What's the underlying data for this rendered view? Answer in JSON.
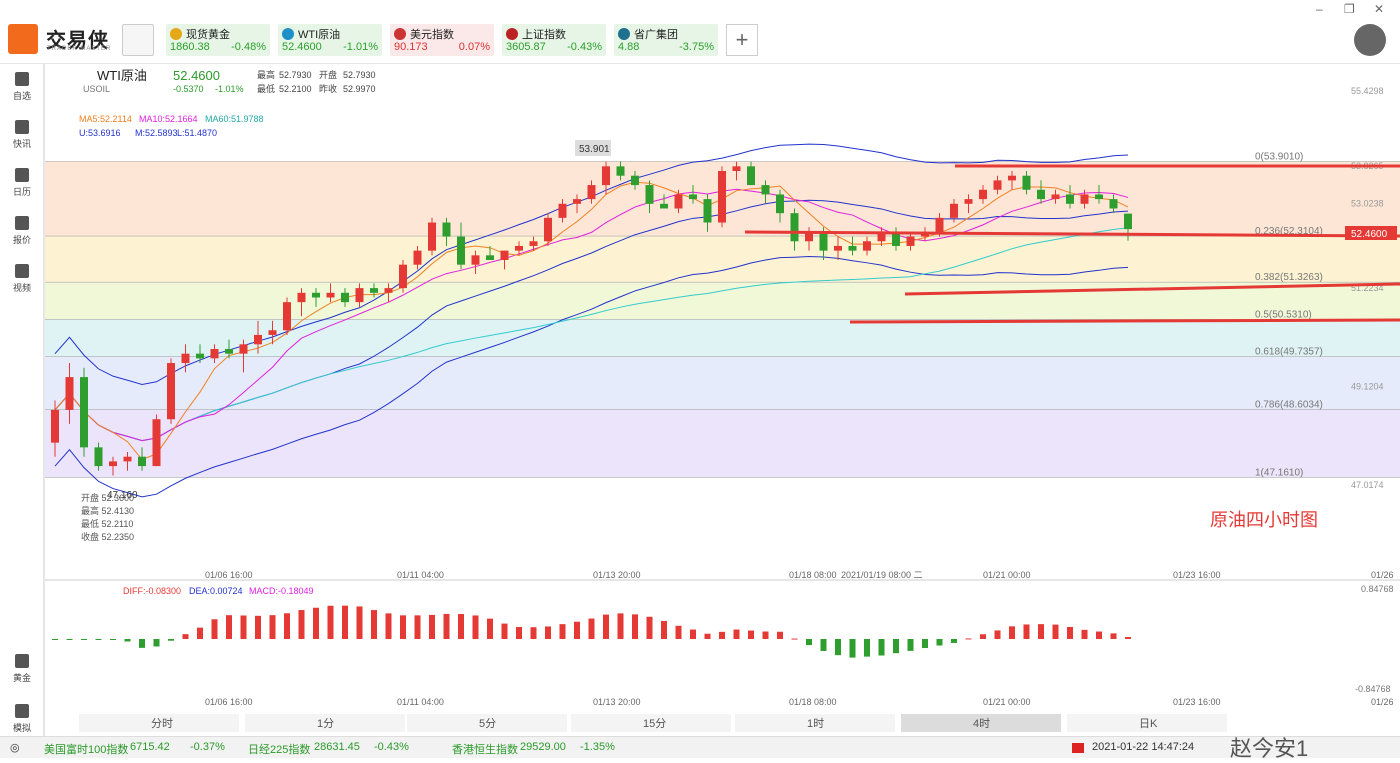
{
  "app": {
    "logo_text": "交易侠",
    "logo_sub": "TRADER MASTER",
    "add_label": "+"
  },
  "tickers": [
    {
      "name": "现货黄金",
      "price": "1860.38",
      "change": "-0.48%",
      "bg": "#e7f5e7",
      "dot": "#e6a817",
      "pc": "#2aa02a"
    },
    {
      "name": "WTI原油",
      "price": "52.4600",
      "change": "-1.01%",
      "bg": "#e7f5e7",
      "dot": "#1f8fc7",
      "pc": "#2aa02a"
    },
    {
      "name": "美元指数",
      "price": "90.173",
      "change": "0.07%",
      "bg": "#fbe8e8",
      "dot": "#c33",
      "pc": "#d33"
    },
    {
      "name": "上证指数",
      "price": "3605.87",
      "change": "-0.43%",
      "bg": "#e7f5e7",
      "dot": "#b22",
      "pc": "#2aa02a"
    },
    {
      "name": "省广集团",
      "price": "4.88",
      "change": "-3.75%",
      "bg": "#e7f5e7",
      "dot": "#1f6f8f",
      "pc": "#2aa02a"
    }
  ],
  "sidebar": [
    "自选",
    "快讯",
    "日历",
    "报价",
    "视频",
    "黄金",
    "模拟"
  ],
  "symbol": {
    "name": "WTI原油",
    "code": "USOIL",
    "price": "52.4600",
    "change": "-0.5370",
    "pct": "-1.01%",
    "high_label": "最高",
    "high": "52.7930",
    "open_label": "开盘",
    "open": "52.7930",
    "low_label": "最低",
    "low": "52.2100",
    "prev_label": "昨收",
    "prev": "52.9970"
  },
  "ma": {
    "ma5": "MA5:52.2114",
    "ma10": "MA10:52.1664",
    "ma60": "MA60:51.9788",
    "u": "U:53.6916",
    "m": "M:52.5893",
    "l": "L:51.4870"
  },
  "fib": [
    {
      "label": "0(53.9010)",
      "price": 53.901
    },
    {
      "label": "0.236(52.3104)",
      "price": 52.3104
    },
    {
      "label": "0.382(51.3263)",
      "price": 51.3263
    },
    {
      "label": "0.5(50.5310)",
      "price": 50.531
    },
    {
      "label": "0.618(49.7357)",
      "price": 49.7357
    },
    {
      "label": "0.786(48.6034)",
      "price": 48.6034
    },
    {
      "label": "1(47.1610)",
      "price": 47.161
    }
  ],
  "yaxis": [
    "55.4298",
    "53.8265",
    "53.0238",
    "52.4600",
    "51.2234",
    "49.1204",
    "47.0174"
  ],
  "annot": {
    "peak": "53.901",
    "low": "47.160",
    "title": "原油四小时图"
  },
  "ohlc_box": [
    "开盘 52.3600",
    "最高 52.4130",
    "最低 52.2110",
    "收盘 52.2350"
  ],
  "xaxis": [
    "01/06 16:00",
    "01/11 04:00",
    "01/13 20:00",
    "01/18 08:00",
    "2021/01/19 08:00 二",
    "01/21 00:00",
    "01/23 16:00",
    "01/26"
  ],
  "macd": {
    "diff": "DIFF:-0.08300",
    "dea": "DEA:0.00724",
    "macd": "MACD:-0.18049",
    "top": "0.84768",
    "bottom": "-0.84768"
  },
  "timeframes": [
    "分时",
    "1分",
    "5分",
    "15分",
    "1时",
    "4时",
    "日K"
  ],
  "footer": [
    {
      "name": "美国富时100指数",
      "price": "6715.42",
      "change": "-0.37%"
    },
    {
      "name": "日经225指数",
      "price": "28631.45",
      "change": "-0.43%"
    },
    {
      "name": "香港恒生指数",
      "price": "29529.00",
      "change": "-1.35%"
    }
  ],
  "datetime": "2021-01-22 14:47:24",
  "watermark": "赵今安1",
  "chart_data": {
    "type": "candlestick",
    "title": "原油四小时图",
    "ylim": [
      47.0174,
      55.4298
    ],
    "candles": [
      [
        47.9,
        48.8,
        47.6,
        48.6
      ],
      [
        48.6,
        49.6,
        48.3,
        49.3
      ],
      [
        49.3,
        49.5,
        47.6,
        47.8
      ],
      [
        47.8,
        47.9,
        47.3,
        47.4
      ],
      [
        47.4,
        47.6,
        47.2,
        47.5
      ],
      [
        47.5,
        47.7,
        47.3,
        47.6
      ],
      [
        47.6,
        47.8,
        47.3,
        47.4
      ],
      [
        47.4,
        48.5,
        47.4,
        48.4
      ],
      [
        48.4,
        49.7,
        48.3,
        49.6
      ],
      [
        49.6,
        50.0,
        49.4,
        49.8
      ],
      [
        49.8,
        50.0,
        49.6,
        49.7
      ],
      [
        49.7,
        50.0,
        49.6,
        49.9
      ],
      [
        49.9,
        50.1,
        49.7,
        49.8
      ],
      [
        49.8,
        50.1,
        49.4,
        50.0
      ],
      [
        50.0,
        50.5,
        49.8,
        50.2
      ],
      [
        50.2,
        50.5,
        50.0,
        50.3
      ],
      [
        50.3,
        51.0,
        50.2,
        50.9
      ],
      [
        50.9,
        51.2,
        50.6,
        51.1
      ],
      [
        51.1,
        51.2,
        50.8,
        51.0
      ],
      [
        51.0,
        51.3,
        50.9,
        51.1
      ],
      [
        51.1,
        51.2,
        50.8,
        50.9
      ],
      [
        50.9,
        51.3,
        50.8,
        51.2
      ],
      [
        51.2,
        51.3,
        51.0,
        51.1
      ],
      [
        51.1,
        51.3,
        50.9,
        51.2
      ],
      [
        51.2,
        51.8,
        51.1,
        51.7
      ],
      [
        51.7,
        52.1,
        51.6,
        52.0
      ],
      [
        52.0,
        52.7,
        51.9,
        52.6
      ],
      [
        52.6,
        52.7,
        52.1,
        52.3
      ],
      [
        52.3,
        52.6,
        51.6,
        51.7
      ],
      [
        51.7,
        52.0,
        51.5,
        51.9
      ],
      [
        51.9,
        52.1,
        51.8,
        51.8
      ],
      [
        51.8,
        52.0,
        51.6,
        52.0
      ],
      [
        52.0,
        52.2,
        51.9,
        52.1
      ],
      [
        52.1,
        52.3,
        52.0,
        52.2
      ],
      [
        52.2,
        52.8,
        52.1,
        52.7
      ],
      [
        52.7,
        53.1,
        52.6,
        53.0
      ],
      [
        53.0,
        53.2,
        52.8,
        53.1
      ],
      [
        53.1,
        53.5,
        53.0,
        53.4
      ],
      [
        53.4,
        53.9,
        53.2,
        53.8
      ],
      [
        53.8,
        53.9,
        53.5,
        53.6
      ],
      [
        53.6,
        53.7,
        53.3,
        53.4
      ],
      [
        53.4,
        53.5,
        52.8,
        53.0
      ],
      [
        53.0,
        53.2,
        52.9,
        52.9
      ],
      [
        52.9,
        53.3,
        52.8,
        53.2
      ],
      [
        53.2,
        53.4,
        53.0,
        53.1
      ],
      [
        53.1,
        53.2,
        52.4,
        52.6
      ],
      [
        52.6,
        53.8,
        52.5,
        53.7
      ],
      [
        53.7,
        53.9,
        53.5,
        53.8
      ],
      [
        53.8,
        53.9,
        53.4,
        53.4
      ],
      [
        53.4,
        53.5,
        53.0,
        53.2
      ],
      [
        53.2,
        53.3,
        52.6,
        52.8
      ],
      [
        52.8,
        52.9,
        52.0,
        52.2
      ],
      [
        52.2,
        52.5,
        52.0,
        52.4
      ],
      [
        52.4,
        52.5,
        51.8,
        52.0
      ],
      [
        52.0,
        52.3,
        51.8,
        52.1
      ],
      [
        52.1,
        52.3,
        51.9,
        52.0
      ],
      [
        52.0,
        52.3,
        51.9,
        52.2
      ],
      [
        52.2,
        52.5,
        52.1,
        52.4
      ],
      [
        52.4,
        52.5,
        52.0,
        52.1
      ],
      [
        52.1,
        52.4,
        52.0,
        52.3
      ],
      [
        52.3,
        52.5,
        52.2,
        52.4
      ],
      [
        52.4,
        52.8,
        52.3,
        52.7
      ],
      [
        52.7,
        53.1,
        52.6,
        53.0
      ],
      [
        53.0,
        53.2,
        52.8,
        53.1
      ],
      [
        53.1,
        53.4,
        53.0,
        53.3
      ],
      [
        53.3,
        53.6,
        53.2,
        53.5
      ],
      [
        53.5,
        53.7,
        53.3,
        53.6
      ],
      [
        53.6,
        53.7,
        53.2,
        53.3
      ],
      [
        53.3,
        53.5,
        53.0,
        53.1
      ],
      [
        53.1,
        53.3,
        53.0,
        53.2
      ],
      [
        53.2,
        53.4,
        52.9,
        53.0
      ],
      [
        53.0,
        53.3,
        52.9,
        53.2
      ],
      [
        53.2,
        53.4,
        53.0,
        53.1
      ],
      [
        53.1,
        53.2,
        52.8,
        52.9
      ],
      [
        52.79,
        52.79,
        52.21,
        52.46
      ]
    ]
  }
}
